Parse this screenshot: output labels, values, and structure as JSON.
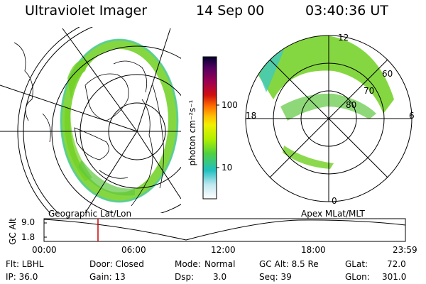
{
  "header": {
    "instrument": "Ultraviolet Imager",
    "date": "14 Sep 00",
    "time": "03:40:36 UT"
  },
  "colorbar": {
    "label": "photon cm⁻²s⁻¹",
    "ticks": [
      "100",
      "10"
    ],
    "colors": [
      "#000030",
      "#550060",
      "#a00050",
      "#d01010",
      "#ff7000",
      "#ffc000",
      "#f0f000",
      "#b0f000",
      "#50d040",
      "#20c0c0",
      "#c0e8f0",
      "#ffffff"
    ]
  },
  "left_map": {
    "label": "Geographic Lat/Lon",
    "aurora_color": "#70d020"
  },
  "right_map": {
    "label": "Apex  MLat/MLT",
    "mlt_labels": [
      "12",
      "18",
      "6",
      "0"
    ],
    "lat_labels": [
      "60",
      "70",
      "80"
    ],
    "aurora_color": "#70d020"
  },
  "timeline": {
    "ylabel": "GC Alt",
    "yticks": [
      "9.0",
      "1.8"
    ],
    "xticks": [
      "00:00",
      "06:00",
      "12:00",
      "18:00",
      "23:59"
    ],
    "marker_color": "#d00000"
  },
  "info": {
    "flt": "Flt: LBHL",
    "ip": "IP: 36.0",
    "door": "Door: Closed",
    "gain": "Gain: 13",
    "mode_label": "Mode:",
    "mode_value": "Normal",
    "dsp_label": "Dsp:",
    "dsp_value": "3.0",
    "gcalt": "GC Alt: 8.5 Re",
    "seq": "Seq: 39",
    "glat_label": "GLat:",
    "glat_value": "72.0",
    "glon_label": "GLon:",
    "glon_value": "301.0"
  }
}
